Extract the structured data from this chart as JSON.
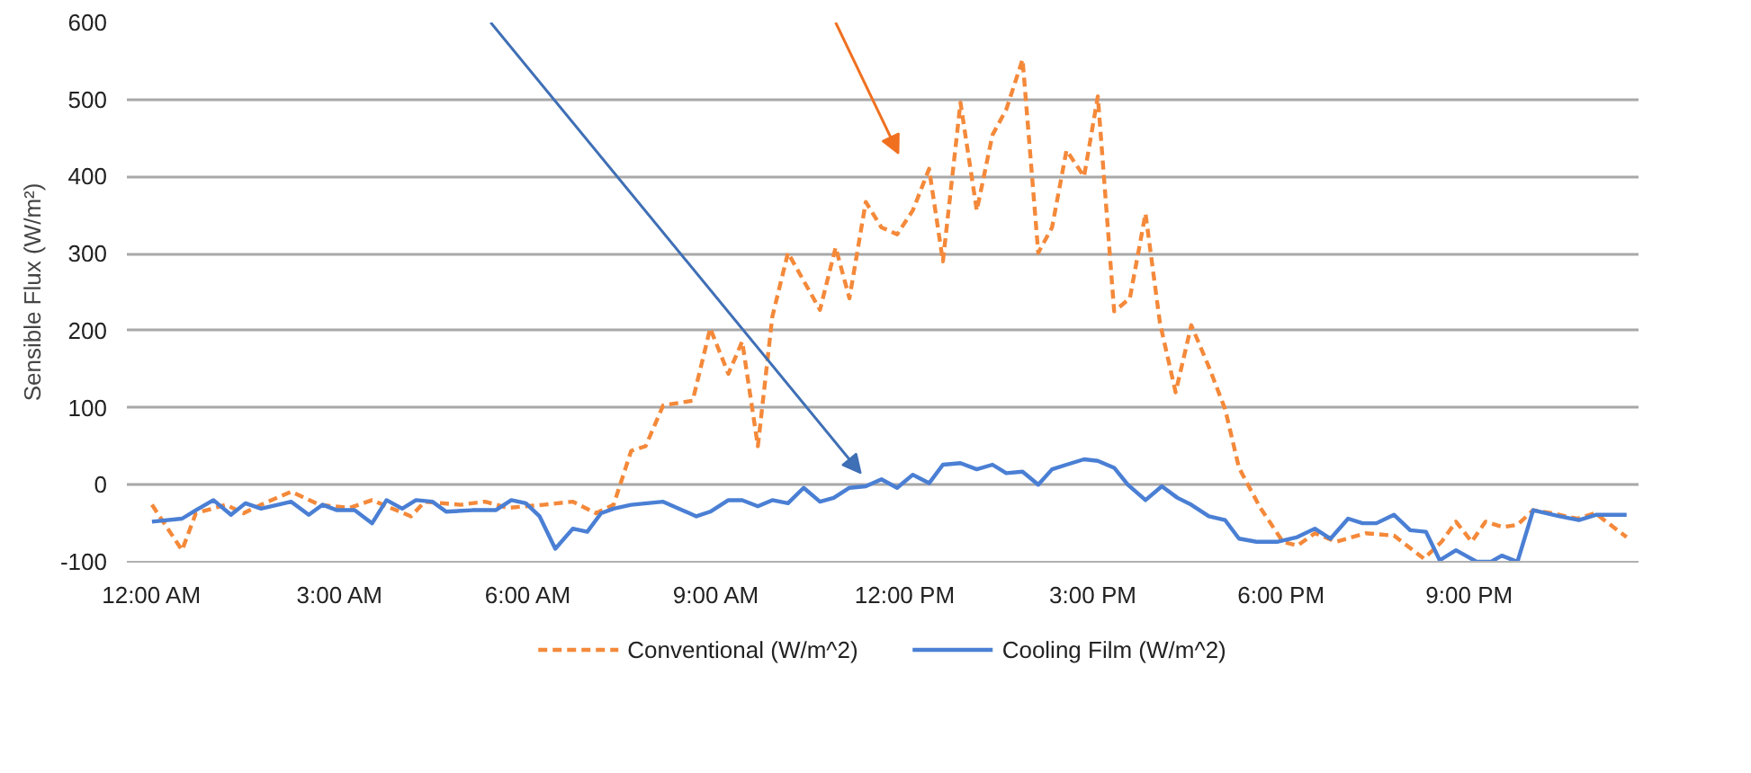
{
  "chart_data": {
    "type": "line",
    "ylabel": "Sensible Flux (W/m²)",
    "xlim": [
      -0.4,
      23.7
    ],
    "xticks": [
      {
        "value": 0,
        "label": "12:00 AM"
      },
      {
        "value": 3,
        "label": "3:00 AM"
      },
      {
        "value": 6,
        "label": "6:00 AM"
      },
      {
        "value": 9,
        "label": "9:00 AM"
      },
      {
        "value": 12,
        "label": "12:00 PM"
      },
      {
        "value": 15,
        "label": "3:00 PM"
      },
      {
        "value": 18,
        "label": "6:00 PM"
      },
      {
        "value": 21,
        "label": "9:00 PM"
      }
    ],
    "ylim": [
      -100,
      600
    ],
    "yticks": [
      -100,
      0,
      100,
      200,
      300,
      400,
      500,
      600
    ],
    "grid": "y",
    "legend": "bottom",
    "series": [
      {
        "name": "Conventional (W/m^2)",
        "color": "#f4893a",
        "line_style": "dashed",
        "x": [
          0,
          0.48,
          0.7,
          1.18,
          1.46,
          1.74,
          2.22,
          2.67,
          3.15,
          3.51,
          4.13,
          4.35,
          4.92,
          5.31,
          5.67,
          6.24,
          6.71,
          7.08,
          7.36,
          7.64,
          7.87,
          8.15,
          8.62,
          8.9,
          9.19,
          9.41,
          9.66,
          9.89,
          10.14,
          10.65,
          10.9,
          11.12,
          11.38,
          11.63,
          11.88,
          12.13,
          12.39,
          12.61,
          12.89,
          13.15,
          13.4,
          13.62,
          13.88,
          14.13,
          14.35,
          14.58,
          14.86,
          15.08,
          15.34,
          15.59,
          15.84,
          16.07,
          16.32,
          16.57,
          16.85,
          17.11,
          17.33,
          17.67,
          18.03,
          18.26,
          18.54,
          18.88,
          19.35,
          19.8,
          20.28,
          20.56,
          20.79,
          21.04,
          21.26,
          21.54,
          21.77,
          22.02,
          22.33,
          22.72,
          23.01,
          23.51
        ],
        "values": [
          -26,
          -85,
          -37,
          -26,
          -37,
          -26,
          -9,
          -26,
          -30,
          -20,
          -41,
          -22,
          -26,
          -22,
          -30,
          -26,
          -22,
          -37,
          -26,
          44,
          50,
          103,
          109,
          203,
          144,
          186,
          50,
          218,
          301,
          227,
          308,
          242,
          367,
          334,
          325,
          356,
          410,
          290,
          496,
          356,
          454,
          487,
          552,
          301,
          334,
          434,
          400,
          504,
          225,
          242,
          352,
          210,
          120,
          207,
          153,
          98,
          22,
          -30,
          -74,
          -79,
          -63,
          -74,
          -63,
          -66,
          -96,
          -74,
          -48,
          -74,
          -48,
          -55,
          -52,
          -33,
          -37,
          -44,
          -37,
          -68
        ]
      },
      {
        "name": "Cooling Film (W/m^2)",
        "color": "#4a7fd4",
        "line_style": "solid",
        "x": [
          0,
          0.48,
          0.7,
          0.98,
          1.26,
          1.49,
          1.74,
          2.22,
          2.5,
          2.72,
          2.95,
          3.23,
          3.51,
          3.74,
          3.99,
          4.21,
          4.47,
          4.69,
          5.11,
          5.48,
          5.73,
          5.96,
          6.18,
          6.43,
          6.71,
          6.94,
          7.16,
          7.36,
          7.64,
          8.15,
          8.68,
          8.9,
          9.19,
          9.41,
          9.66,
          9.89,
          10.14,
          10.39,
          10.65,
          10.87,
          11.12,
          11.38,
          11.63,
          11.88,
          12.13,
          12.39,
          12.61,
          12.89,
          13.15,
          13.4,
          13.62,
          13.88,
          14.13,
          14.35,
          14.58,
          14.86,
          15.08,
          15.34,
          15.56,
          15.84,
          16.1,
          16.35,
          16.57,
          16.85,
          17.11,
          17.33,
          17.61,
          17.95,
          18.26,
          18.54,
          18.79,
          19.07,
          19.3,
          19.52,
          19.8,
          20.06,
          20.31,
          20.53,
          20.79,
          21.12,
          21.35,
          21.52,
          21.77,
          22.02,
          22.44,
          22.75,
          23.03,
          23.51
        ],
        "values": [
          -48,
          -44,
          -33,
          -20,
          -39,
          -24,
          -31,
          -22,
          -39,
          -26,
          -33,
          -33,
          -50,
          -20,
          -31,
          -20,
          -22,
          -35,
          -33,
          -33,
          -20,
          -24,
          -41,
          -83,
          -57,
          -61,
          -37,
          -31,
          -26,
          -22,
          -41,
          -35,
          -20,
          -20,
          -28,
          -20,
          -24,
          -4,
          -22,
          -17,
          -4,
          -2,
          7,
          -4,
          13,
          2,
          26,
          28,
          20,
          26,
          15,
          17,
          0,
          20,
          26,
          33,
          31,
          22,
          0,
          -20,
          -2,
          -17,
          -26,
          -41,
          -46,
          -70,
          -74,
          -74,
          -68,
          -57,
          -70,
          -44,
          -50,
          -50,
          -39,
          -59,
          -61,
          -98,
          -85,
          -100,
          -100,
          -92,
          -100,
          -33,
          -41,
          -46,
          -39,
          -39
        ]
      }
    ]
  }
}
